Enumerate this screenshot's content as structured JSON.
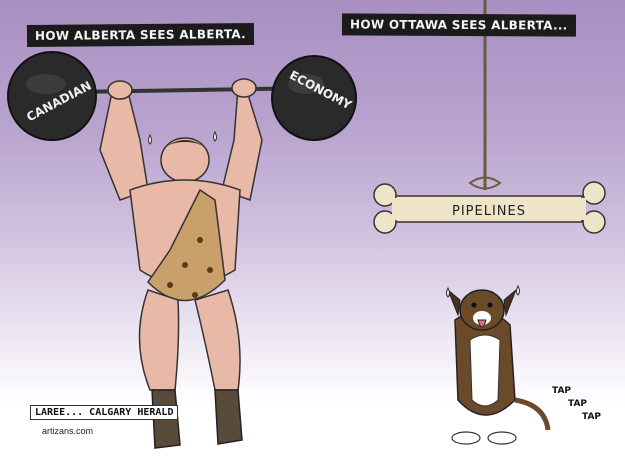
{
  "captions": {
    "left": "HOW ALBERTA SEES ALBERTA.",
    "right": "HOW OTTAWA SEES ALBERTA..."
  },
  "barbell": {
    "left_weight_label": "CANADIAN",
    "right_weight_label": "ECONOMY"
  },
  "bone": {
    "label": "PIPELINES"
  },
  "dog": {
    "tap_words": [
      "TAP",
      "TAP",
      "TAP"
    ]
  },
  "signature": "LAREE... CALGARY HERALD",
  "credit": "artizans.com",
  "colors": {
    "sky_top": "#a98fc2",
    "sky_bottom": "#ffffff",
    "caption_bg": "#1b1b1b",
    "skin": "#e9b9a8",
    "leopard": "#c9a06a"
  }
}
